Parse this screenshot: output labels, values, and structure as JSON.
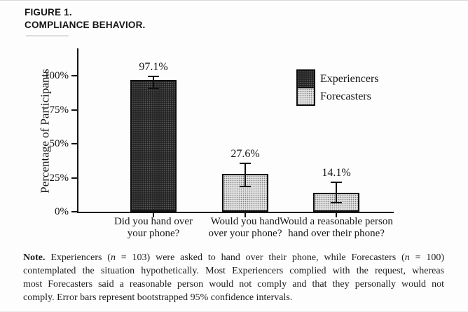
{
  "figure": {
    "label": "FIGURE 1.",
    "title": "COMPLIANCE BEHAVIOR."
  },
  "colors": {
    "experiencers_fill": "#242424",
    "forecasters_fill": "#e2e2e2",
    "axis": "#141414",
    "text": "#1b1b1b"
  },
  "chart_data": {
    "type": "bar",
    "title": "",
    "xlabel": "",
    "ylabel": "Percentage of Participants",
    "ylim": [
      0,
      120
    ],
    "grid": false,
    "legend_position": "upper-right-inside",
    "yticks": [
      {
        "value": 0,
        "label": "0%"
      },
      {
        "value": 25,
        "label": "25%"
      },
      {
        "value": 50,
        "label": "50%"
      },
      {
        "value": 75,
        "label": "75%"
      },
      {
        "value": 100,
        "label": "100%"
      }
    ],
    "legend": [
      {
        "name": "Experiencers",
        "swatch": "dark"
      },
      {
        "name": "Forecasters",
        "swatch": "light"
      }
    ],
    "bars": [
      {
        "category": [
          "Did you hand over",
          "your phone?"
        ],
        "value": 97.1,
        "label": "97.1%",
        "group": "Experiencers",
        "swatch": "dark",
        "ci_low": 90.5,
        "ci_high": 99.5
      },
      {
        "category": [
          "Would you hand",
          "over your phone?"
        ],
        "value": 27.6,
        "label": "27.6%",
        "group": "Forecasters",
        "swatch": "light",
        "ci_low": 18.5,
        "ci_high": 35.8
      },
      {
        "category": [
          "Would a reasonable person",
          "hand over their phone?"
        ],
        "value": 14.1,
        "label": "14.1%",
        "group": "Forecasters",
        "swatch": "light",
        "ci_low": 6.8,
        "ci_high": 21.6
      }
    ],
    "error_bar_meaning": "bootstrapped 95% confidence intervals"
  },
  "note": {
    "line1": [
      {
        "t": "Note.",
        "b": true
      },
      {
        "t": " Experiencers ("
      },
      {
        "t": "n",
        "i": true
      },
      {
        "t": " = 103) were asked to hand over their phone, while Forecasters ("
      },
      {
        "t": "n",
        "i": true
      },
      {
        "t": " = 100)"
      }
    ],
    "line2": "contemplated the situation hypothetically. Most Experiencers complied with the request, whereas",
    "line3": "most Forecasters said a reasonable person would not comply and that they personally would not",
    "line4": "comply. Error bars represent bootstrapped 95% confidence intervals."
  }
}
